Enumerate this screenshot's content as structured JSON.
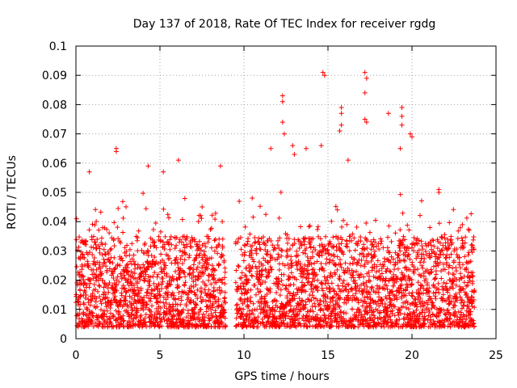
{
  "chart_data": {
    "type": "scatter",
    "title": "Day 137 of 2018, Rate Of TEC Index for receiver rgdg",
    "xlabel": "GPS time / hours",
    "ylabel": "ROTI / TECUs",
    "xlim": [
      0,
      25
    ],
    "ylim": [
      0,
      0.1
    ],
    "x_ticks": [
      "0",
      "5",
      "10",
      "15",
      "20",
      "25"
    ],
    "y_ticks": [
      "0",
      "0.01",
      "0.02",
      "0.03",
      "0.04",
      "0.05",
      "0.06",
      "0.07",
      "0.08",
      "0.09",
      "0.1"
    ],
    "grid": true,
    "legend": "none",
    "marker": "plus",
    "colors": {
      "points": "#ff0000",
      "grid": "#a0a0a0",
      "axes": "#000000"
    },
    "series": [
      {
        "coverage_hours": [
          [
            0.0,
            8.9
          ],
          [
            9.5,
            23.7
          ]
        ],
        "baseline_range": [
          0.004,
          0.035
        ],
        "notable_points": [
          {
            "x": 0.8,
            "y": 0.057
          },
          {
            "x": 2.4,
            "y": 0.065
          },
          {
            "x": 2.4,
            "y": 0.064
          },
          {
            "x": 4.3,
            "y": 0.059
          },
          {
            "x": 5.2,
            "y": 0.057
          },
          {
            "x": 6.1,
            "y": 0.061
          },
          {
            "x": 8.6,
            "y": 0.059
          },
          {
            "x": 11.6,
            "y": 0.065
          },
          {
            "x": 12.3,
            "y": 0.083
          },
          {
            "x": 12.3,
            "y": 0.081
          },
          {
            "x": 12.3,
            "y": 0.074
          },
          {
            "x": 12.4,
            "y": 0.07
          },
          {
            "x": 12.9,
            "y": 0.066
          },
          {
            "x": 13.0,
            "y": 0.063
          },
          {
            "x": 13.7,
            "y": 0.065
          },
          {
            "x": 14.7,
            "y": 0.091
          },
          {
            "x": 14.8,
            "y": 0.09
          },
          {
            "x": 14.6,
            "y": 0.066
          },
          {
            "x": 15.8,
            "y": 0.079
          },
          {
            "x": 15.8,
            "y": 0.077
          },
          {
            "x": 15.8,
            "y": 0.073
          },
          {
            "x": 15.7,
            "y": 0.071
          },
          {
            "x": 16.2,
            "y": 0.061
          },
          {
            "x": 17.2,
            "y": 0.091
          },
          {
            "x": 17.3,
            "y": 0.089
          },
          {
            "x": 17.2,
            "y": 0.084
          },
          {
            "x": 17.2,
            "y": 0.075
          },
          {
            "x": 17.3,
            "y": 0.074
          },
          {
            "x": 18.6,
            "y": 0.077
          },
          {
            "x": 19.4,
            "y": 0.079
          },
          {
            "x": 19.4,
            "y": 0.076
          },
          {
            "x": 19.4,
            "y": 0.073
          },
          {
            "x": 19.3,
            "y": 0.065
          },
          {
            "x": 19.9,
            "y": 0.07
          },
          {
            "x": 20.0,
            "y": 0.069
          },
          {
            "x": 21.6,
            "y": 0.051
          },
          {
            "x": 21.6,
            "y": 0.05
          },
          {
            "x": 23.0,
            "y": 0.039
          },
          {
            "x": 23.4,
            "y": 0.037
          }
        ]
      }
    ]
  }
}
